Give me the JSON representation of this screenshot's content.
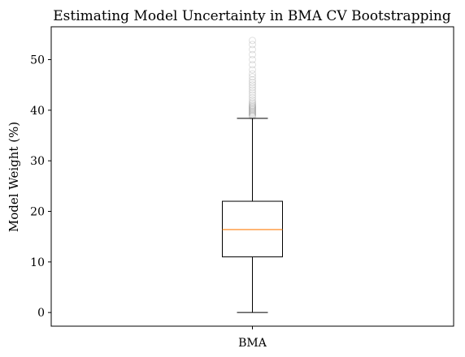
{
  "chart_data": {
    "type": "box",
    "title": "Estimating Model Uncertainty in BMA CV Bootstrapping",
    "xlabel": "",
    "ylabel": "Model Weight (%)",
    "categories": [
      "BMA"
    ],
    "ylim": [
      -2.7,
      56.5
    ],
    "yticks": [
      0,
      10,
      20,
      30,
      40,
      50
    ],
    "grid": false,
    "box": {
      "whisker_low": 0.0,
      "q1": 11.0,
      "median": 16.4,
      "q3": 22.0,
      "whisker_high": 38.4
    },
    "outliers": [
      38.8,
      39.0,
      39.2,
      39.4,
      39.6,
      39.8,
      40.0,
      40.2,
      40.4,
      40.6,
      40.8,
      41.0,
      41.3,
      41.6,
      42.0,
      42.5,
      43.0,
      43.5,
      44.0,
      44.5,
      45.0,
      45.5,
      46.0,
      46.6,
      47.2,
      48.0,
      49.0,
      50.0,
      51.0,
      52.0,
      53.0,
      53.8
    ],
    "colors": {
      "box": "#000000",
      "median": "#ff7f0e",
      "outlier": "#000000"
    }
  }
}
